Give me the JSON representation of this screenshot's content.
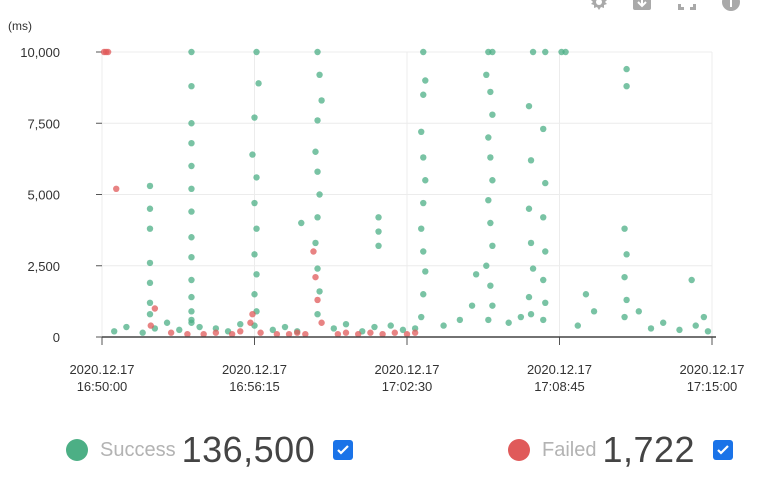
{
  "colors": {
    "success": "#4caf85",
    "failed": "#e05a5a",
    "checkbox": "#1a73e8"
  },
  "toolbar": {
    "icons": [
      "settings-icon",
      "download-icon",
      "fullscreen-icon",
      "info-icon"
    ]
  },
  "chart_data": {
    "type": "scatter",
    "unit_label": "(ms)",
    "ylim": [
      0,
      10000
    ],
    "y_ticks": [
      {
        "value": 10000,
        "label": "10,000"
      },
      {
        "value": 7500,
        "label": "7,500"
      },
      {
        "value": 5000,
        "label": "5,000"
      },
      {
        "value": 2500,
        "label": "2,500"
      },
      {
        "value": 0,
        "label": "0"
      }
    ],
    "xlim": [
      "2020.12.17 16:50:00",
      "2020.12.17 17:15:00"
    ],
    "x_ticks": [
      {
        "value": "2020.12.17 16:50:00",
        "date": "2020.12.17",
        "time": "16:50:00"
      },
      {
        "value": "2020.12.17 16:56:15",
        "date": "2020.12.17",
        "time": "16:56:15"
      },
      {
        "value": "2020.12.17 17:02:30",
        "date": "2020.12.17",
        "time": "17:02:30"
      },
      {
        "value": "2020.12.17 17:08:45",
        "date": "2020.12.17",
        "time": "17:08:45"
      },
      {
        "value": "2020.12.17 17:15:00",
        "date": "2020.12.17",
        "time": "17:15:00"
      }
    ],
    "grid": true,
    "legend_position": "bottom",
    "series": [
      {
        "name": "Success",
        "count": "136,500",
        "checked": true,
        "points": [
          [
            "16:50:30",
            200
          ],
          [
            "16:51:00",
            350
          ],
          [
            "16:51:40",
            150
          ],
          [
            "16:52:10",
            300
          ],
          [
            "16:52:40",
            500
          ],
          [
            "16:51:58",
            5300
          ],
          [
            "16:51:58",
            4500
          ],
          [
            "16:51:58",
            3800
          ],
          [
            "16:51:58",
            2600
          ],
          [
            "16:51:58",
            1900
          ],
          [
            "16:51:58",
            1200
          ],
          [
            "16:51:58",
            800
          ],
          [
            "16:53:10",
            250
          ],
          [
            "16:53:40",
            600
          ],
          [
            "16:54:00",
            350
          ],
          [
            "16:53:40",
            10000
          ],
          [
            "16:53:40",
            8800
          ],
          [
            "16:53:40",
            7500
          ],
          [
            "16:53:40",
            6800
          ],
          [
            "16:53:40",
            6000
          ],
          [
            "16:53:40",
            5200
          ],
          [
            "16:53:40",
            4400
          ],
          [
            "16:53:40",
            3500
          ],
          [
            "16:53:40",
            2800
          ],
          [
            "16:53:40",
            2000
          ],
          [
            "16:53:40",
            1400
          ],
          [
            "16:53:40",
            900
          ],
          [
            "16:53:40",
            500
          ],
          [
            "16:54:40",
            300
          ],
          [
            "16:55:10",
            200
          ],
          [
            "16:55:40",
            450
          ],
          [
            "16:56:20",
            10000
          ],
          [
            "16:56:25",
            8900
          ],
          [
            "16:56:15",
            7700
          ],
          [
            "16:56:10",
            6400
          ],
          [
            "16:56:20",
            5600
          ],
          [
            "16:56:15",
            4700
          ],
          [
            "16:56:20",
            3800
          ],
          [
            "16:56:15",
            2900
          ],
          [
            "16:56:20",
            2200
          ],
          [
            "16:56:15",
            1500
          ],
          [
            "16:56:20",
            900
          ],
          [
            "16:56:15",
            400
          ],
          [
            "16:57:00",
            250
          ],
          [
            "16:57:30",
            350
          ],
          [
            "16:58:00",
            200
          ],
          [
            "16:58:10",
            4000
          ],
          [
            "16:58:50",
            10000
          ],
          [
            "16:58:55",
            9200
          ],
          [
            "16:59:00",
            8300
          ],
          [
            "16:58:50",
            7600
          ],
          [
            "16:58:45",
            6500
          ],
          [
            "16:58:50",
            5800
          ],
          [
            "16:58:55",
            5000
          ],
          [
            "16:58:50",
            4200
          ],
          [
            "16:58:45",
            3300
          ],
          [
            "16:58:50",
            2400
          ],
          [
            "16:58:55",
            1600
          ],
          [
            "16:58:50",
            800
          ],
          [
            "16:59:30",
            300
          ],
          [
            "17:00:00",
            450
          ],
          [
            "17:00:40",
            200
          ],
          [
            "17:01:10",
            350
          ],
          [
            "17:01:20",
            4200
          ],
          [
            "17:01:20",
            3700
          ],
          [
            "17:01:20",
            3200
          ],
          [
            "17:01:50",
            400
          ],
          [
            "17:02:20",
            250
          ],
          [
            "17:02:50",
            300
          ],
          [
            "17:03:10",
            10000
          ],
          [
            "17:03:15",
            9000
          ],
          [
            "17:03:10",
            8500
          ],
          [
            "17:03:05",
            7200
          ],
          [
            "17:03:10",
            6300
          ],
          [
            "17:03:15",
            5500
          ],
          [
            "17:03:10",
            4700
          ],
          [
            "17:03:05",
            3800
          ],
          [
            "17:03:10",
            3000
          ],
          [
            "17:03:15",
            2300
          ],
          [
            "17:03:10",
            1500
          ],
          [
            "17:03:05",
            700
          ],
          [
            "17:04:00",
            400
          ],
          [
            "17:04:40",
            600
          ],
          [
            "17:05:10",
            1100
          ],
          [
            "17:05:20",
            2200
          ],
          [
            "17:05:50",
            10000
          ],
          [
            "17:06:00",
            10000
          ],
          [
            "17:05:45",
            9200
          ],
          [
            "17:05:55",
            8600
          ],
          [
            "17:06:00",
            7800
          ],
          [
            "17:05:50",
            7000
          ],
          [
            "17:05:55",
            6300
          ],
          [
            "17:06:00",
            5500
          ],
          [
            "17:05:50",
            4800
          ],
          [
            "17:05:55",
            4000
          ],
          [
            "17:06:00",
            3200
          ],
          [
            "17:05:45",
            2500
          ],
          [
            "17:05:55",
            1800
          ],
          [
            "17:06:00",
            1100
          ],
          [
            "17:05:50",
            600
          ],
          [
            "17:06:40",
            500
          ],
          [
            "17:07:10",
            700
          ],
          [
            "17:07:40",
            10000
          ],
          [
            "17:07:30",
            8100
          ],
          [
            "17:07:35",
            6200
          ],
          [
            "17:07:30",
            4500
          ],
          [
            "17:07:35",
            3300
          ],
          [
            "17:07:40",
            2400
          ],
          [
            "17:07:30",
            1400
          ],
          [
            "17:07:35",
            800
          ],
          [
            "17:08:10",
            10000
          ],
          [
            "17:08:05",
            7300
          ],
          [
            "17:08:10",
            5400
          ],
          [
            "17:08:05",
            4200
          ],
          [
            "17:08:10",
            3000
          ],
          [
            "17:08:05",
            2000
          ],
          [
            "17:08:10",
            1200
          ],
          [
            "17:08:05",
            600
          ],
          [
            "17:08:50",
            10000
          ],
          [
            "17:09:00",
            10000
          ],
          [
            "17:09:30",
            400
          ],
          [
            "17:09:50",
            1500
          ],
          [
            "17:10:10",
            900
          ],
          [
            "17:11:30",
            9400
          ],
          [
            "17:11:30",
            8800
          ],
          [
            "17:11:25",
            3800
          ],
          [
            "17:11:30",
            2900
          ],
          [
            "17:11:25",
            2100
          ],
          [
            "17:11:30",
            1300
          ],
          [
            "17:11:25",
            700
          ],
          [
            "17:12:00",
            900
          ],
          [
            "17:12:30",
            300
          ],
          [
            "17:13:00",
            500
          ],
          [
            "17:13:40",
            250
          ],
          [
            "17:14:10",
            2000
          ],
          [
            "17:14:20",
            400
          ],
          [
            "17:14:40",
            700
          ],
          [
            "17:14:50",
            200
          ]
        ]
      },
      {
        "name": "Failed",
        "count": "1,722",
        "checked": true,
        "points": [
          [
            "16:50:05",
            10000
          ],
          [
            "16:50:10",
            10000
          ],
          [
            "16:50:15",
            10000
          ],
          [
            "16:50:35",
            5200
          ],
          [
            "16:52:00",
            400
          ],
          [
            "16:52:10",
            1000
          ],
          [
            "16:52:50",
            150
          ],
          [
            "16:53:30",
            100
          ],
          [
            "16:54:10",
            100
          ],
          [
            "16:54:40",
            150
          ],
          [
            "16:55:20",
            100
          ],
          [
            "16:55:40",
            200
          ],
          [
            "16:56:05",
            500
          ],
          [
            "16:56:10",
            800
          ],
          [
            "16:56:30",
            150
          ],
          [
            "16:57:10",
            100
          ],
          [
            "16:57:40",
            100
          ],
          [
            "16:58:00",
            150
          ],
          [
            "16:58:20",
            100
          ],
          [
            "16:58:40",
            3000
          ],
          [
            "16:58:45",
            2100
          ],
          [
            "16:58:50",
            1300
          ],
          [
            "16:59:00",
            500
          ],
          [
            "16:59:40",
            100
          ],
          [
            "17:00:00",
            150
          ],
          [
            "17:00:30",
            100
          ],
          [
            "17:01:00",
            150
          ],
          [
            "17:01:30",
            100
          ],
          [
            "17:02:00",
            150
          ],
          [
            "17:02:30",
            100
          ],
          [
            "17:02:50",
            150
          ]
        ]
      }
    ]
  }
}
